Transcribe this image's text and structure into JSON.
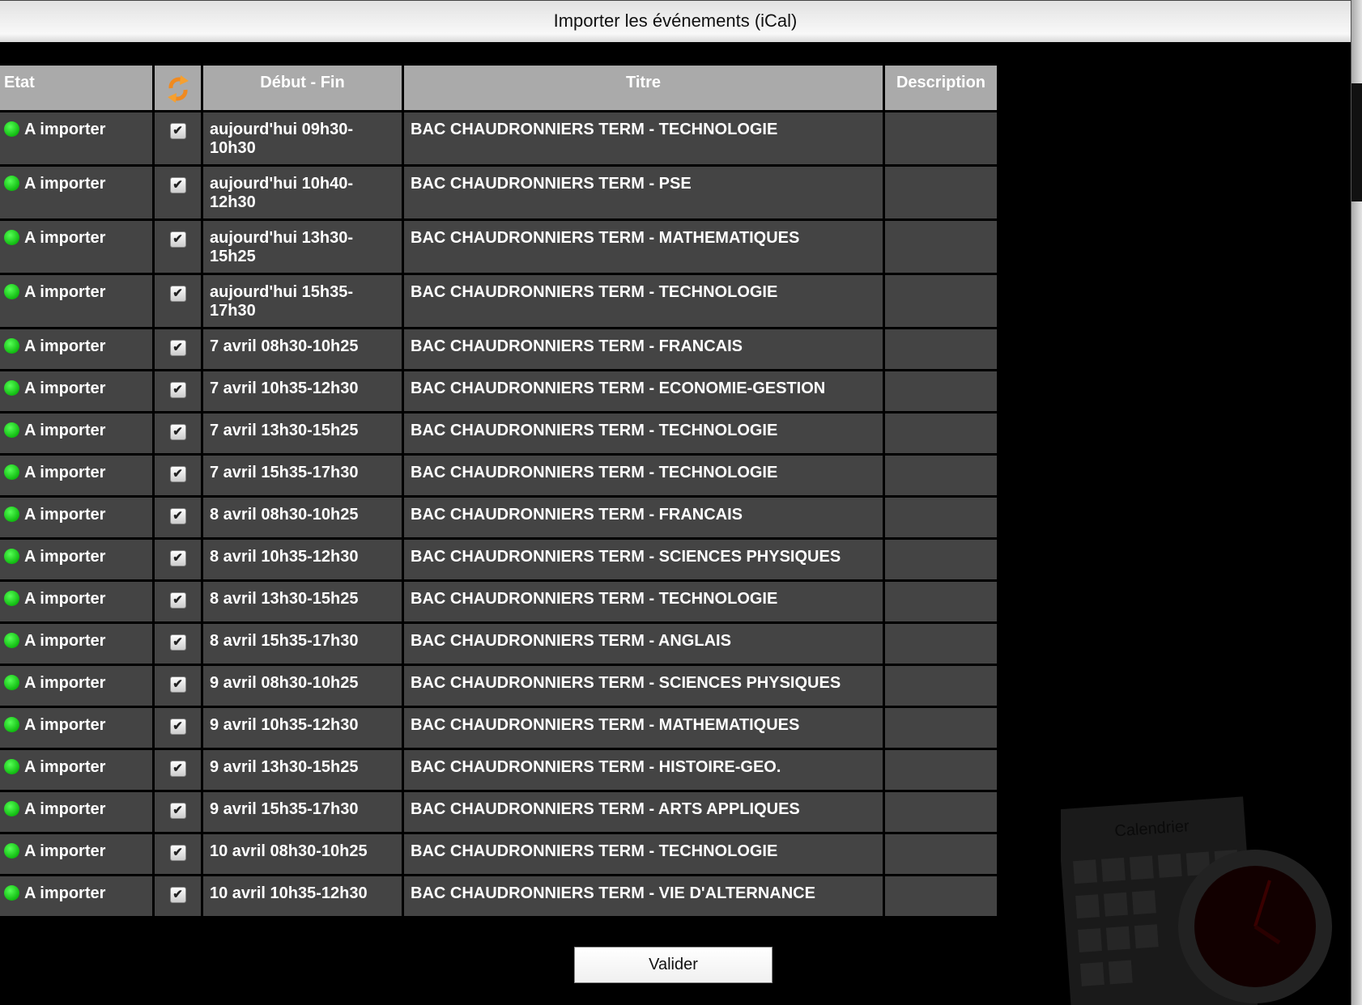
{
  "dialog": {
    "title": "Importer les événements (iCal)"
  },
  "table": {
    "headers": {
      "etat": "Etat",
      "sync_icon": "refresh-icon",
      "debut_fin": "Début - Fin",
      "titre": "Titre",
      "description": "Description"
    },
    "rows": [
      {
        "etat": "A importer",
        "checked": true,
        "debut_fin": "aujourd'hui 09h30-\n10h30",
        "titre": "BAC CHAUDRONNIERS TERM - TECHNOLOGIE",
        "description": ""
      },
      {
        "etat": "A importer",
        "checked": true,
        "debut_fin": "aujourd'hui 10h40-\n12h30",
        "titre": "BAC CHAUDRONNIERS TERM - PSE",
        "description": ""
      },
      {
        "etat": "A importer",
        "checked": true,
        "debut_fin": "aujourd'hui 13h30-\n15h25",
        "titre": "BAC CHAUDRONNIERS TERM - MATHEMATIQUES",
        "description": ""
      },
      {
        "etat": "A importer",
        "checked": true,
        "debut_fin": "aujourd'hui 15h35-\n17h30",
        "titre": "BAC CHAUDRONNIERS TERM - TECHNOLOGIE",
        "description": ""
      },
      {
        "etat": "A importer",
        "checked": true,
        "debut_fin": "7 avril 08h30-10h25",
        "titre": "BAC CHAUDRONNIERS TERM - FRANCAIS",
        "description": ""
      },
      {
        "etat": "A importer",
        "checked": true,
        "debut_fin": "7 avril 10h35-12h30",
        "titre": "BAC CHAUDRONNIERS TERM - ECONOMIE-GESTION",
        "description": ""
      },
      {
        "etat": "A importer",
        "checked": true,
        "debut_fin": "7 avril 13h30-15h25",
        "titre": "BAC CHAUDRONNIERS TERM - TECHNOLOGIE",
        "description": ""
      },
      {
        "etat": "A importer",
        "checked": true,
        "debut_fin": "7 avril 15h35-17h30",
        "titre": "BAC CHAUDRONNIERS TERM - TECHNOLOGIE",
        "description": ""
      },
      {
        "etat": "A importer",
        "checked": true,
        "debut_fin": "8 avril 08h30-10h25",
        "titre": "BAC CHAUDRONNIERS TERM - FRANCAIS",
        "description": ""
      },
      {
        "etat": "A importer",
        "checked": true,
        "debut_fin": "8 avril 10h35-12h30",
        "titre": "BAC CHAUDRONNIERS TERM - SCIENCES PHYSIQUES",
        "description": ""
      },
      {
        "etat": "A importer",
        "checked": true,
        "debut_fin": "8 avril 13h30-15h25",
        "titre": "BAC CHAUDRONNIERS TERM - TECHNOLOGIE",
        "description": ""
      },
      {
        "etat": "A importer",
        "checked": true,
        "debut_fin": "8 avril 15h35-17h30",
        "titre": "BAC CHAUDRONNIERS TERM - ANGLAIS",
        "description": ""
      },
      {
        "etat": "A importer",
        "checked": true,
        "debut_fin": "9 avril 08h30-10h25",
        "titre": "BAC CHAUDRONNIERS TERM - SCIENCES PHYSIQUES",
        "description": ""
      },
      {
        "etat": "A importer",
        "checked": true,
        "debut_fin": "9 avril 10h35-12h30",
        "titre": "BAC CHAUDRONNIERS TERM - MATHEMATIQUES",
        "description": ""
      },
      {
        "etat": "A importer",
        "checked": true,
        "debut_fin": "9 avril 13h30-15h25",
        "titre": "BAC CHAUDRONNIERS TERM - HISTOIRE-GEO.",
        "description": ""
      },
      {
        "etat": "A importer",
        "checked": true,
        "debut_fin": "9 avril 15h35-17h30",
        "titre": "BAC CHAUDRONNIERS TERM - ARTS APPLIQUES",
        "description": ""
      },
      {
        "etat": "A importer",
        "checked": true,
        "debut_fin": "10 avril 08h30-10h25",
        "titre": "BAC CHAUDRONNIERS TERM - TECHNOLOGIE",
        "description": ""
      },
      {
        "etat": "A importer",
        "checked": true,
        "debut_fin": "10 avril 10h35-12h30",
        "titre": "BAC CHAUDRONNIERS TERM - VIE D'ALTERNANCE",
        "description": ""
      }
    ]
  },
  "status_color": "#22cc22",
  "decoration": {
    "label": "Calendrier"
  },
  "footer": {
    "validate_label": "Valider"
  }
}
